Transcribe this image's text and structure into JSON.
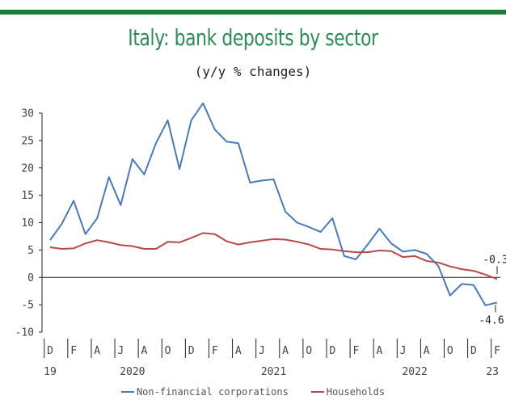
{
  "chart_data": {
    "type": "line",
    "title": "Italy: bank deposits by sector",
    "subtitle": "(y/y % changes)",
    "ylim": [
      -10,
      30
    ],
    "yticks": [
      30,
      25,
      20,
      15,
      10,
      5,
      0,
      -5,
      -10
    ],
    "month_labels": [
      "D",
      "F",
      "A",
      "J",
      "A",
      "O",
      "D",
      "F",
      "A",
      "J",
      "A",
      "O",
      "D",
      "F",
      "A",
      "J",
      "A",
      "O",
      "D",
      "F"
    ],
    "year_labels": [
      "19",
      "2020",
      "2021",
      "2022",
      "23"
    ],
    "series": [
      {
        "name": "Non-financial corporations",
        "color": "#4a7ab8",
        "values": [
          6.8,
          9.8,
          14.0,
          7.9,
          10.8,
          18.3,
          13.2,
          21.6,
          18.8,
          24.5,
          28.7,
          19.8,
          28.7,
          31.8,
          27.0,
          24.8,
          24.5,
          17.3,
          17.7,
          17.9,
          12.0,
          10.0,
          9.2,
          8.3,
          10.8,
          3.9,
          3.3,
          6.0,
          8.9,
          6.2,
          4.7,
          5.0,
          4.3,
          2.1,
          -3.3,
          -1.2,
          -1.4,
          -5.1,
          -4.6
        ]
      },
      {
        "name": "Households",
        "color": "#b8494a",
        "values": [
          5.5,
          5.2,
          5.3,
          6.2,
          6.8,
          6.4,
          5.9,
          5.7,
          5.2,
          5.2,
          6.5,
          6.4,
          7.2,
          8.1,
          7.9,
          6.6,
          6.0,
          6.4,
          6.7,
          7.0,
          6.9,
          6.5,
          6.0,
          5.2,
          5.1,
          4.8,
          4.6,
          4.6,
          4.9,
          4.8,
          3.7,
          3.9,
          3.0,
          2.7,
          2.0,
          1.5,
          1.2,
          0.5,
          -0.3
        ]
      }
    ],
    "annotations": [
      {
        "series": "Households",
        "label": "-0.3"
      },
      {
        "series": "Non-financial corporations",
        "label": "-4.6"
      }
    ]
  }
}
